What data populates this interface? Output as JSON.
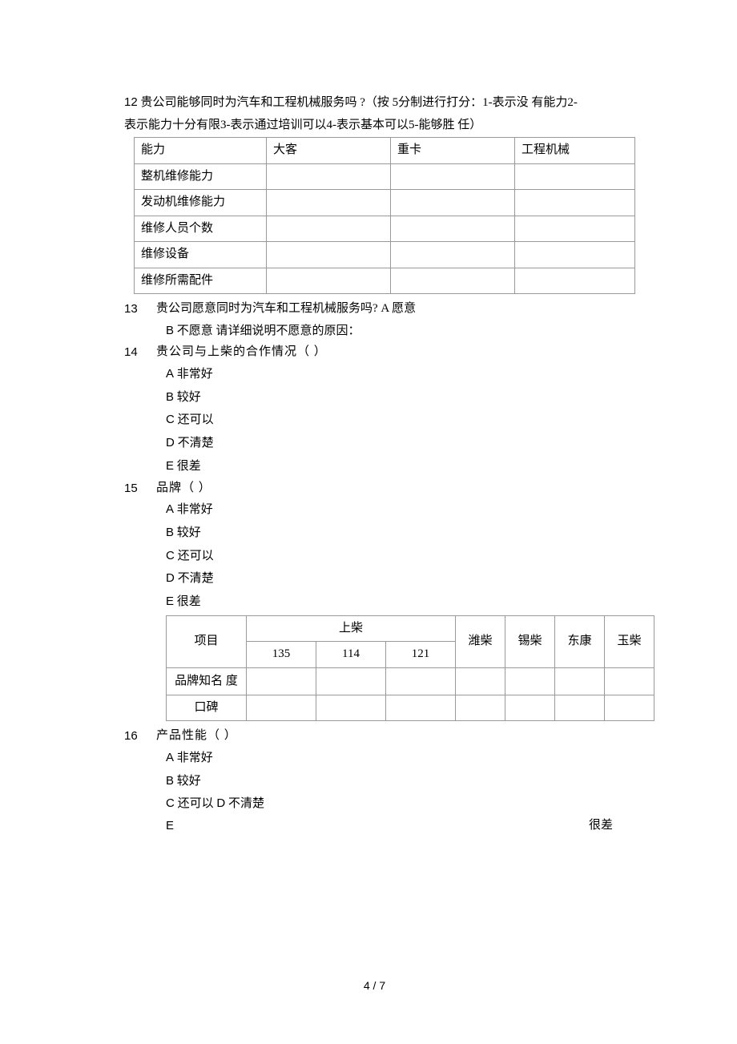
{
  "q12": {
    "number": "12",
    "text_line1": " 贵公司能够同时为汽车和工程机械服务吗 ?（按  5分制进行打分：1-表示没  有能力2-",
    "text_line2": "表示能力十分有限3-表示通过培训可以4-表示基本可以5-能够胜  任）",
    "table": {
      "headers": [
        "能力",
        "大客",
        "重卡",
        "工程机械"
      ],
      "rows": [
        "整机维修能力",
        "发动机维修能力",
        "维修人员个数",
        "维修设备",
        "维修所需配件"
      ]
    }
  },
  "q13": {
    "number": "13",
    "text": "贵公司愿意同时为汽车和工程机械服务吗?  A 愿意",
    "line2_letter": "B",
    "line2_text": " 不愿意  请详细说明不愿意的原因："
  },
  "q14": {
    "number": "14",
    "text": "贵公司与上柴的合作情况（                     ）",
    "options": [
      {
        "letter": "A",
        "text": " 非常好"
      },
      {
        "letter": "B",
        "text": " 较好"
      },
      {
        "letter": "C",
        "text": " 还可以"
      },
      {
        "letter": "D",
        "text": " 不清楚"
      },
      {
        "letter": "E",
        "text": " 很差"
      }
    ]
  },
  "q15": {
    "number": "15",
    "text": "品牌（                  ）",
    "options": [
      {
        "letter": "A",
        "text": " 非常好"
      },
      {
        "letter": "B",
        "text": " 较好"
      },
      {
        "letter": "C",
        "text": " 还可以"
      },
      {
        "letter": "D",
        "text": " 不清楚"
      },
      {
        "letter": "E",
        "text": " 很差"
      }
    ],
    "table": {
      "col_project": "项目",
      "col_shangchai": "上柴",
      "subcols": [
        "135",
        "114",
        "121"
      ],
      "others": [
        "潍柴",
        "锡柴",
        "东康",
        "玉柴"
      ],
      "rows": [
        "品牌知名  度",
        "口碑"
      ]
    }
  },
  "q16": {
    "number": "16",
    "text": "产品性能（                     ）",
    "options": [
      {
        "letter": "A",
        "text": " 非常好"
      },
      {
        "letter": "B",
        "text": " 较好"
      },
      {
        "letter": "C",
        "text": " 还可以  "
      },
      {
        "letter2": "D",
        "text2": " 不清楚"
      },
      {
        "letter": "E",
        "text_right": "很差"
      }
    ]
  },
  "page": "4 / 7"
}
